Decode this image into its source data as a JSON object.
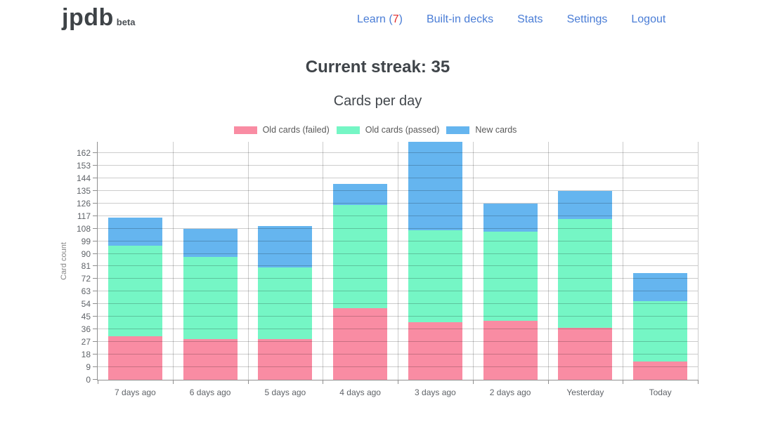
{
  "header": {
    "logo_text": "jpdb",
    "logo_badge": "beta",
    "nav": {
      "learn_prefix": "Learn (",
      "learn_count": "7",
      "learn_suffix": ")",
      "items": [
        "Built-in decks",
        "Stats",
        "Settings",
        "Logout"
      ]
    }
  },
  "main": {
    "streak_heading": "Current streak: 35"
  },
  "colors": {
    "nav_link": "#4a7dd6",
    "learn_count_alert": "#e02d2d",
    "heading_text": "#3f4449",
    "axis_text": "#5f6368",
    "failed": "#f98ca3",
    "passed": "#75f6c5",
    "new": "#65b5ef"
  },
  "chart_data": {
    "type": "bar",
    "stacked": true,
    "title": "Cards per day",
    "xlabel": "",
    "ylabel": "Card count",
    "categories": [
      "7 days ago",
      "6 days ago",
      "5 days ago",
      "4 days ago",
      "3 days ago",
      "2 days ago",
      "Yesterday",
      "Today"
    ],
    "series": [
      {
        "name": "Old cards (failed)",
        "color": "#f98ca3",
        "values": [
          31,
          29,
          29,
          51,
          41,
          42,
          37,
          13
        ]
      },
      {
        "name": "Old cards (passed)",
        "color": "#75f6c5",
        "values": [
          65,
          59,
          51,
          74,
          66,
          64,
          78,
          43
        ]
      },
      {
        "name": "New cards",
        "color": "#65b5ef",
        "values": [
          20,
          20,
          30,
          15,
          63,
          20,
          20,
          20
        ]
      }
    ],
    "totals": [
      116,
      108,
      110,
      140,
      170,
      126,
      135,
      76
    ],
    "y_ticks": [
      0,
      9,
      18,
      27,
      36,
      45,
      54,
      63,
      72,
      81,
      90,
      99,
      108,
      117,
      126,
      135,
      144,
      153,
      162
    ],
    "ylim": [
      0,
      170
    ],
    "grid": true,
    "legend_position": "top"
  }
}
